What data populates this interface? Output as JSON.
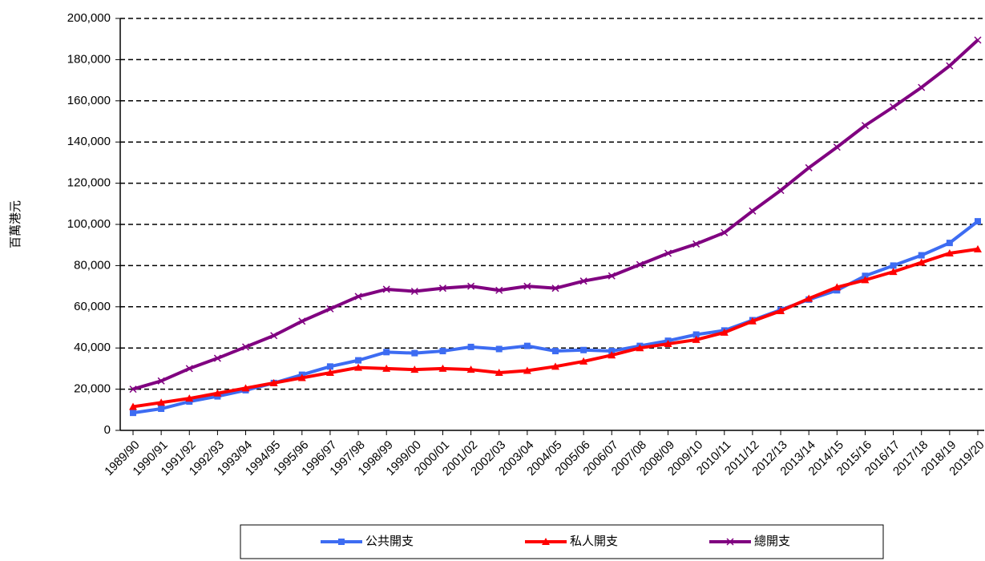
{
  "chart_data": {
    "type": "line",
    "y_label": "百萬港元",
    "categories": [
      "1989/90",
      "1990/91",
      "1991/92",
      "1992/93",
      "1993/94",
      "1994/95",
      "1995/96",
      "1996/97",
      "1997/98",
      "1998/99",
      "1999/00",
      "2000/01",
      "2001/02",
      "2002/03",
      "2003/04",
      "2004/05",
      "2005/06",
      "2006/07",
      "2007/08",
      "2008/09",
      "2009/10",
      "2010/11",
      "2011/12",
      "2012/13",
      "2013/14",
      "2014/15",
      "2015/16",
      "2016/17",
      "2017/18",
      "2018/19",
      "2019/20"
    ],
    "series": [
      {
        "name": "公共開支",
        "color": "#3d6cf2",
        "marker": "square",
        "values": [
          8500,
          10500,
          14000,
          16500,
          19500,
          23000,
          27000,
          31000,
          34000,
          38000,
          37500,
          38500,
          40500,
          39500,
          41000,
          38500,
          39000,
          38500,
          41000,
          43500,
          46500,
          48500,
          53500,
          58500,
          63500,
          68000,
          75000,
          80000,
          85000,
          91000,
          101500
        ]
      },
      {
        "name": "私人開支",
        "color": "#ff0000",
        "marker": "triangle",
        "values": [
          11500,
          13500,
          15500,
          18000,
          20500,
          23000,
          25500,
          28000,
          30500,
          30000,
          29500,
          30000,
          29500,
          28000,
          29000,
          31000,
          33500,
          36500,
          40000,
          42000,
          44000,
          47500,
          53000,
          58000,
          64000,
          69500,
          73000,
          77000,
          81500,
          86000,
          88000
        ]
      },
      {
        "name": "總開支",
        "color": "#800080",
        "marker": "x",
        "values": [
          20000,
          24000,
          30000,
          35000,
          40500,
          46000,
          53000,
          59000,
          65000,
          68500,
          67500,
          69000,
          70000,
          68000,
          70000,
          69000,
          72500,
          75000,
          80500,
          86000,
          90500,
          96000,
          106500,
          116500,
          127500,
          137500,
          148000,
          157000,
          166500,
          177000,
          189500
        ]
      }
    ],
    "ylim": [
      0,
      200000
    ],
    "yticks": [
      0,
      {
        "value": 20000,
        "label": "20,000"
      },
      {
        "value": 40000,
        "label": "40,000"
      },
      {
        "value": 60000,
        "label": "60,000"
      },
      {
        "value": 80000,
        "label": "80,000"
      },
      {
        "value": 100000,
        "label": "100,000"
      },
      {
        "value": 120000,
        "label": "120,000"
      },
      {
        "value": 140000,
        "label": "140,000"
      },
      {
        "value": 160000,
        "label": "160,000"
      },
      {
        "value": 180000,
        "label": "180,000"
      },
      {
        "value": 200000,
        "label": "200,000"
      }
    ],
    "grid": true
  }
}
